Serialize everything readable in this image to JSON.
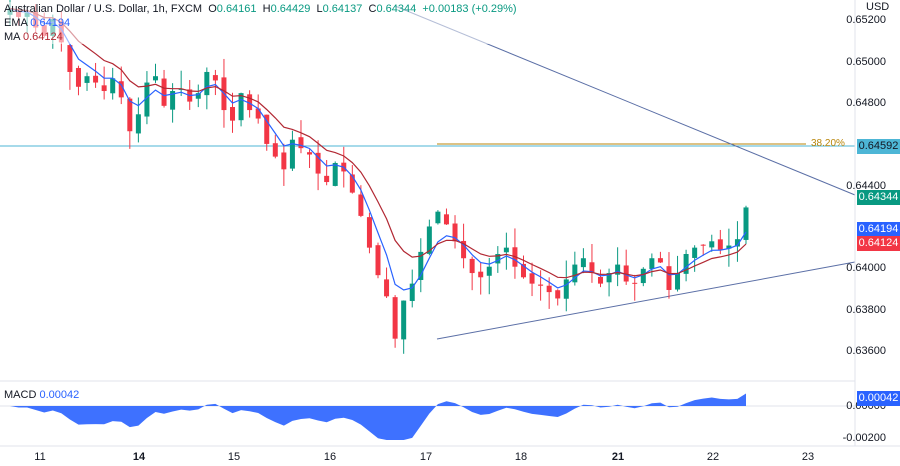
{
  "legend": {
    "symbol": "Australian Dollar / U.S. Dollar, 1h, FXCM",
    "open_label": "O",
    "open": "0.64161",
    "high_label": "H",
    "high": "0.64429",
    "low_label": "L",
    "low": "0.64137",
    "close_label": "C",
    "close": "0.64344",
    "change": "+0.00183 (+0.29%)",
    "ema_label": "EMA",
    "ema_value": "0.64194",
    "ma_label": "MA",
    "ma_value": "0.64124"
  },
  "axis": {
    "currency": "USD",
    "price_ticks": [
      "0.65200",
      "0.65000",
      "0.64800",
      "0.64400",
      "0.64000",
      "0.63800",
      "0.63600"
    ],
    "date_ticks": [
      "11",
      "14",
      "15",
      "16",
      "17",
      "18",
      "21",
      "22",
      "23"
    ],
    "bold_dates": [
      "14",
      "21"
    ]
  },
  "badges": {
    "resistance": "0.64592",
    "last_price": "0.64344",
    "ema": "0.64194",
    "ma": "0.64124",
    "macd": "0.00042",
    "macd_zero": "0.00000",
    "macd_low": "-0.00200"
  },
  "fib": {
    "label": "38.20%",
    "price": 0.64592
  },
  "macd": {
    "label": "MACD",
    "value": "0.00042"
  },
  "colors": {
    "up": "#089981",
    "down": "#f23645",
    "ema": "#2962ff",
    "ma": "#b22833",
    "trend": "#5b6fa6",
    "horizontal": "#4db6d6",
    "fib": "#b8860b",
    "macd_fill": "#2962ff"
  },
  "chart_data": {
    "type": "candlestick",
    "title": "Australian Dollar / U.S. Dollar, 1h, FXCM",
    "ylim": [
      0.6352,
      0.6532
    ],
    "x_dates": [
      "11",
      "14",
      "15",
      "16",
      "17",
      "18",
      "21",
      "22",
      "23"
    ],
    "close_path": [
      0.6528,
      0.6524,
      0.6526,
      0.6519,
      0.6515,
      0.6523,
      0.6512,
      0.6498,
      0.6491,
      0.6496,
      0.6493,
      0.6489,
      0.6495,
      0.6486,
      0.647,
      0.6478,
      0.6493,
      0.6496,
      0.6482,
      0.6489,
      0.649,
      0.6484,
      0.6488,
      0.6498,
      0.6494,
      0.648,
      0.6475,
      0.6488,
      0.648,
      0.6476,
      0.6464,
      0.6458,
      0.6452,
      0.6466,
      0.6462,
      0.6459,
      0.645,
      0.6446,
      0.6455,
      0.6451,
      0.6441,
      0.643,
      0.6415,
      0.6402,
      0.6392,
      0.6372,
      0.639,
      0.6398,
      0.6413,
      0.6425,
      0.6432,
      0.6426,
      0.6418,
      0.641,
      0.6403,
      0.6401,
      0.6406,
      0.6412,
      0.6415,
      0.6406,
      0.6401,
      0.6398,
      0.6397,
      0.6394,
      0.6391,
      0.64,
      0.6407,
      0.641,
      0.6403,
      0.6398,
      0.6403,
      0.6407,
      0.6399,
      0.6398,
      0.6405,
      0.641,
      0.6408,
      0.6395,
      0.6403,
      0.6412,
      0.6415,
      0.6416,
      0.6418,
      0.6414,
      0.6416,
      0.6419,
      0.6434
    ],
    "resistance_level": 0.64592,
    "fib_level_label": "38.20%",
    "trendlines": [
      {
        "name": "descending",
        "from": [
          0.6535,
          "11"
        ],
        "to": [
          0.644,
          "23"
        ]
      },
      {
        "name": "ascending",
        "from": [
          0.6366,
          "17"
        ],
        "to": [
          0.6402,
          "23"
        ]
      }
    ],
    "indicators": {
      "EMA": 0.64194,
      "MA": 0.64124,
      "MACD": 0.00042
    },
    "macd_ticks": [
      "0.00000",
      "-0.00200"
    ],
    "grid": false
  }
}
